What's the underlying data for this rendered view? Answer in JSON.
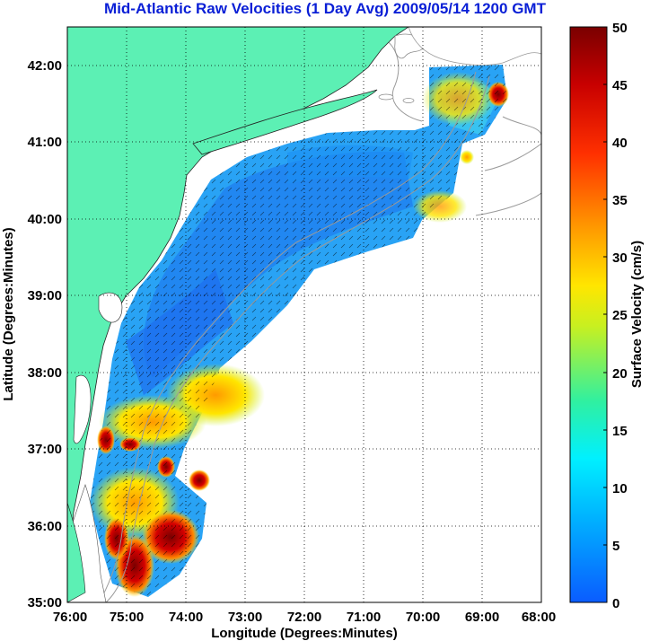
{
  "title": "Mid-Atlantic Raw Velocities (1 Day Avg) 2009/05/14 1200 GMT",
  "x_axis": {
    "label": "Longitude (Degrees:Minutes)",
    "ticks": [
      "76:00",
      "75:00",
      "74:00",
      "73:00",
      "72:00",
      "71:00",
      "70:00",
      "69:00",
      "68:00"
    ]
  },
  "y_axis": {
    "label": "Latitude (Degrees:Minutes)",
    "ticks": [
      "42:00",
      "41:00",
      "40:00",
      "39:00",
      "38:00",
      "37:00",
      "36:00",
      "35:00"
    ]
  },
  "colorbar": {
    "label": "Surface Velocity (cm/s)",
    "ticks": [
      "50",
      "45",
      "40",
      "35",
      "30",
      "25",
      "20",
      "15",
      "10",
      "5",
      "0"
    ],
    "range": [
      0,
      50
    ],
    "colors": [
      "#0a5cff",
      "#00b4ff",
      "#00f0ff",
      "#30f0a0",
      "#c8f020",
      "#ffe600",
      "#ff9a00",
      "#ff3000",
      "#c80000",
      "#7a0000"
    ]
  },
  "map": {
    "land_color": "#5cf0b4",
    "ocean_color": "#ffffff",
    "grid": "dotted",
    "contour_color": "#9a9a9a",
    "lon_range": [
      -76,
      -68
    ],
    "lat_range": [
      35,
      42.5
    ]
  }
}
